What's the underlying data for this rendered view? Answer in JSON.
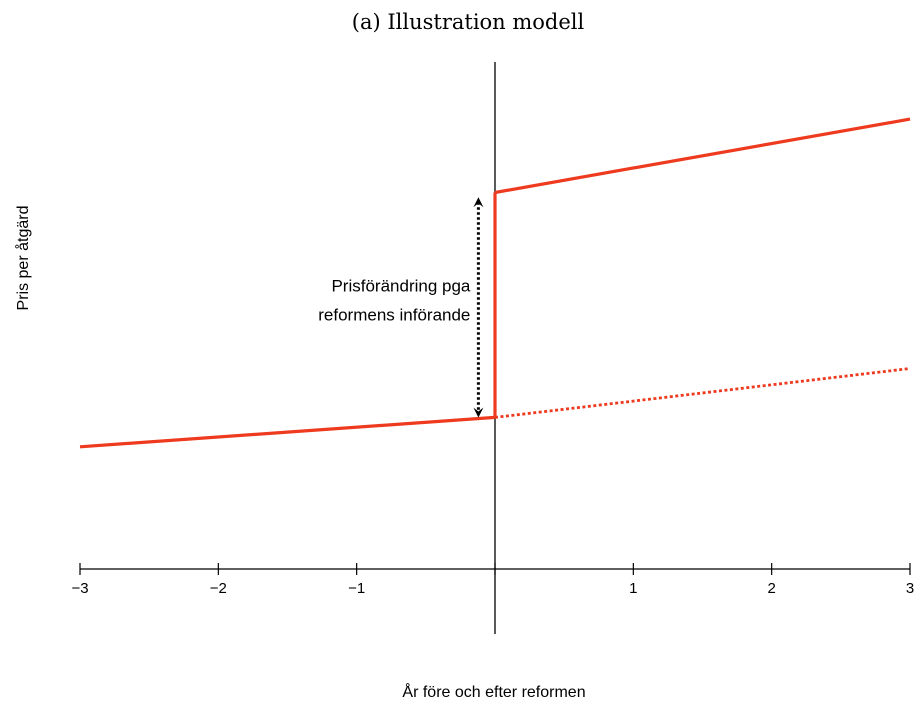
{
  "chart_data": {
    "type": "line",
    "title": "(a) Illustration modell",
    "xlabel": "År före och efter reformen",
    "ylabel": "Pris per åtgärd",
    "xlim": [
      -3,
      3
    ],
    "ylim": [
      0,
      10
    ],
    "x_ticks": [
      -3,
      -2,
      -1,
      0,
      1,
      2,
      3
    ],
    "x_tick_labels": [
      "−3",
      "−2",
      "−1",
      "",
      "1",
      "2",
      "3"
    ],
    "grid": false,
    "legend": "none",
    "series": [
      {
        "style": "solid",
        "color": "#ee3a1e",
        "x": [
          -3,
          0
        ],
        "y": [
          2.5,
          3.1
        ]
      },
      {
        "style": "solid",
        "color": "#ee3a1e",
        "x": [
          0,
          0
        ],
        "y": [
          3.1,
          7.7
        ]
      },
      {
        "style": "solid",
        "color": "#ee3a1e",
        "x": [
          0,
          3
        ],
        "y": [
          7.7,
          9.2
        ]
      },
      {
        "style": "dotted",
        "color": "#ee3a1e",
        "x": [
          0,
          3
        ],
        "y": [
          3.1,
          4.1
        ]
      }
    ],
    "annotation": {
      "lines": [
        "Prisförändring pga",
        "reformens införande"
      ],
      "arrow": "double-headed dotted vertical",
      "x": -0.12,
      "y_from": 3.2,
      "y_to": 7.5
    }
  },
  "colors": {
    "series": "#ee3a1e",
    "axis": "#000000"
  }
}
